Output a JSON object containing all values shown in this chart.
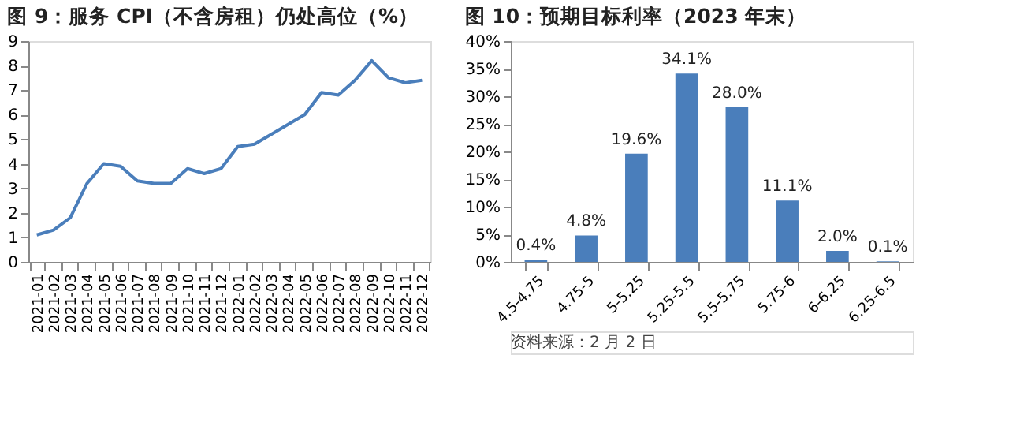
{
  "chart_data": [
    {
      "type": "line",
      "title": "图 9：服务 CPI（不含房租）仍处高位（%）",
      "categories": [
        "2021-01",
        "2021-02",
        "2021-03",
        "2021-04",
        "2021-05",
        "2021-06",
        "2021-07",
        "2021-08",
        "2021-09",
        "2021-10",
        "2021-11",
        "2021-12",
        "2022-01",
        "2022-02",
        "2022-03",
        "2022-04",
        "2022-05",
        "2022-06",
        "2022-07",
        "2022-08",
        "2022-09",
        "2022-10",
        "2022-11",
        "2022-12"
      ],
      "series": [
        {
          "color": "#4a7ebb",
          "values": [
            1.1,
            1.3,
            1.8,
            3.2,
            4.0,
            3.9,
            3.3,
            3.2,
            3.2,
            3.8,
            3.6,
            3.8,
            4.7,
            4.8,
            5.2,
            5.6,
            6.0,
            6.9,
            6.8,
            7.4,
            8.2,
            7.5,
            7.3,
            7.4
          ]
        }
      ],
      "ylim": [
        0,
        9
      ],
      "yticks": [
        0,
        1,
        2,
        3,
        4,
        5,
        6,
        7,
        8,
        9
      ],
      "grid": false,
      "marker": "none",
      "line_style": "solid"
    },
    {
      "type": "bar",
      "title": "图 10：预期目标利率（2023 年末）",
      "categories": [
        "4.5-4.75",
        "4.75-5",
        "5-5.25",
        "5.25-5.5",
        "5.5-5.75",
        "5.75-6",
        "6-6.25",
        "6.25-6.5"
      ],
      "series": [
        {
          "color": "#4a7ebb",
          "values": [
            0.4,
            4.8,
            19.6,
            34.1,
            28.0,
            11.1,
            2.0,
            0.1
          ]
        }
      ],
      "value_labels": [
        "0.4%",
        "4.8%",
        "19.6%",
        "34.1%",
        "28.0%",
        "11.1%",
        "2.0%",
        "0.1%"
      ],
      "ylim": [
        0,
        40
      ],
      "yticks": [
        {
          "value": 0,
          "label": "0%"
        },
        {
          "value": 5,
          "label": "5%"
        },
        {
          "value": 10,
          "label": "10%"
        },
        {
          "value": 15,
          "label": "15%"
        },
        {
          "value": 20,
          "label": "20%"
        },
        {
          "value": 25,
          "label": "25%"
        },
        {
          "value": 30,
          "label": "30%"
        },
        {
          "value": 35,
          "label": "35%"
        },
        {
          "value": 40,
          "label": "40%"
        }
      ],
      "grid": false,
      "annotations": [
        "资料来源：2 月 2 日"
      ]
    }
  ]
}
